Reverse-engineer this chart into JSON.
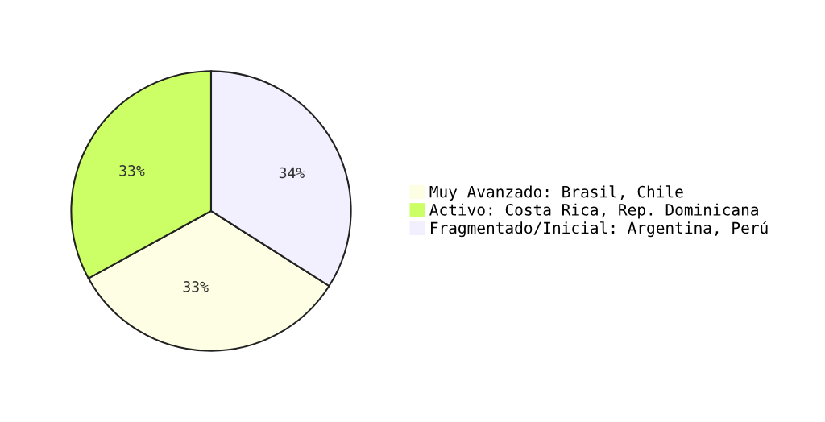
{
  "chart_data": {
    "type": "pie",
    "categories": [
      "Muy Avanzado: Brasil, Chile",
      "Activo: Costa Rica, Rep. Dominicana",
      "Fragmentado/Inicial: Argentina, Perú"
    ],
    "values": [
      33,
      33,
      34
    ],
    "value_labels": [
      "33%",
      "33%",
      "34%"
    ],
    "colors": [
      "#fefee4",
      "#ccff66",
      "#f2f0ff"
    ],
    "legend": "right"
  }
}
